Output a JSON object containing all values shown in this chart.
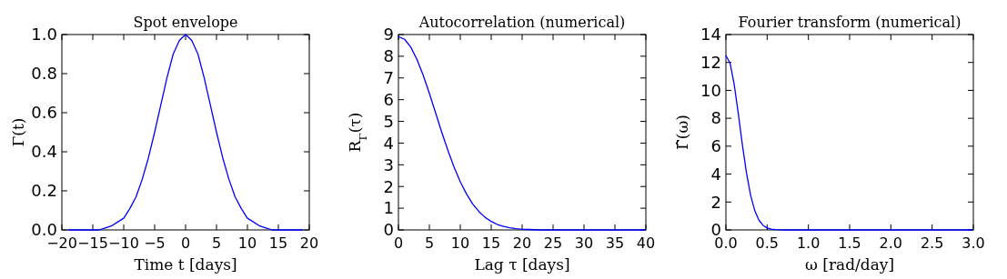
{
  "chart_data": [
    {
      "type": "line",
      "title": "Spot envelope",
      "xlabel": "Time t [days]",
      "ylabel": "Γ(t)",
      "xlim": [
        -20,
        20
      ],
      "xticks": [
        {
          "value": -20,
          "label": "−20"
        },
        {
          "value": -15,
          "label": "−15"
        },
        {
          "value": -10,
          "label": "−10"
        },
        {
          "value": -5,
          "label": "−5"
        },
        0,
        5,
        10,
        15,
        20
      ],
      "ylim": [
        0,
        1
      ],
      "yticks": [
        {
          "value": 0,
          "label": "0.0"
        },
        0.2,
        0.4,
        0.6,
        0.8,
        {
          "value": 1,
          "label": "1.0"
        }
      ],
      "line_style": "solid",
      "marker": "none",
      "series": [
        {
          "color": "#0000ff",
          "x": [
            -19,
            -18,
            -17,
            -16,
            -15,
            -14,
            -13,
            -12,
            -11,
            -10,
            -9,
            -8,
            -7,
            -6,
            -5,
            -4,
            -3,
            -2,
            -1,
            0,
            1,
            2,
            3,
            4,
            5,
            6,
            7,
            8,
            9,
            10,
            11,
            12,
            13,
            14,
            15,
            16,
            17,
            18,
            19
          ],
          "values": [
            0,
            0,
            0,
            0,
            0,
            0,
            0.01,
            0.02,
            0.04,
            0.06,
            0.11,
            0.17,
            0.26,
            0.37,
            0.5,
            0.64,
            0.78,
            0.9,
            0.97,
            1,
            0.97,
            0.9,
            0.78,
            0.64,
            0.5,
            0.37,
            0.26,
            0.17,
            0.11,
            0.06,
            0.04,
            0.02,
            0.01,
            0,
            0,
            0,
            0,
            0,
            0
          ]
        }
      ]
    },
    {
      "type": "line",
      "title": "Autocorrelation (numerical)",
      "xlabel": "Lag τ [days]",
      "ylabel": "R$_{Γ}$(τ)",
      "xlim": [
        0,
        40
      ],
      "xticks": [
        0,
        5,
        10,
        15,
        20,
        25,
        30,
        35,
        40
      ],
      "ylim": [
        0,
        9
      ],
      "yticks": [
        0,
        1,
        2,
        3,
        4,
        5,
        6,
        7,
        8,
        9
      ],
      "line_style": "solid",
      "marker": "none",
      "series": [
        {
          "color": "#0000ff",
          "x": [
            0,
            1,
            2,
            3,
            4,
            5,
            6,
            7,
            8,
            9,
            10,
            11,
            12,
            13,
            14,
            15,
            16,
            17,
            18,
            19,
            20,
            21,
            22,
            23,
            25,
            30,
            35,
            40
          ],
          "values": [
            8.9,
            8.78,
            8.42,
            7.85,
            7.13,
            6.29,
            5.4,
            4.5,
            3.66,
            2.89,
            2.22,
            1.66,
            1.2,
            0.85,
            0.58,
            0.39,
            0.25,
            0.16,
            0.1,
            0.06,
            0.03,
            0.02,
            0.01,
            0,
            0,
            0,
            0,
            0
          ]
        }
      ]
    },
    {
      "type": "line",
      "title": "Fourier transform (numerical)",
      "xlabel": "ω [rad/day]",
      "ylabel": "Γ̂(ω)",
      "xlim": [
        0,
        3
      ],
      "xticks": [
        {
          "value": 0,
          "label": "0.0"
        },
        0.5,
        {
          "value": 1,
          "label": "1.0"
        },
        1.5,
        {
          "value": 2,
          "label": "2.0"
        },
        2.5,
        {
          "value": 3,
          "label": "3.0"
        }
      ],
      "ylim": [
        0,
        14
      ],
      "yticks": [
        0,
        2,
        4,
        6,
        8,
        10,
        12,
        14
      ],
      "line_style": "solid",
      "marker": "none",
      "series": [
        {
          "color": "#0000ff",
          "x": [
            0,
            0.05,
            0.1,
            0.15,
            0.2,
            0.25,
            0.3,
            0.35,
            0.4,
            0.45,
            0.5,
            0.55,
            0.6,
            0.65,
            0.7,
            0.8,
            0.9,
            1,
            1.5,
            2,
            2.5,
            3
          ],
          "values": [
            12.5,
            11.95,
            10.44,
            8.34,
            6.08,
            4.06,
            2.47,
            1.38,
            0.7,
            0.33,
            0.14,
            0.05,
            0.02,
            0.01,
            0,
            0,
            0,
            0,
            0,
            0,
            0,
            0
          ]
        }
      ]
    }
  ]
}
